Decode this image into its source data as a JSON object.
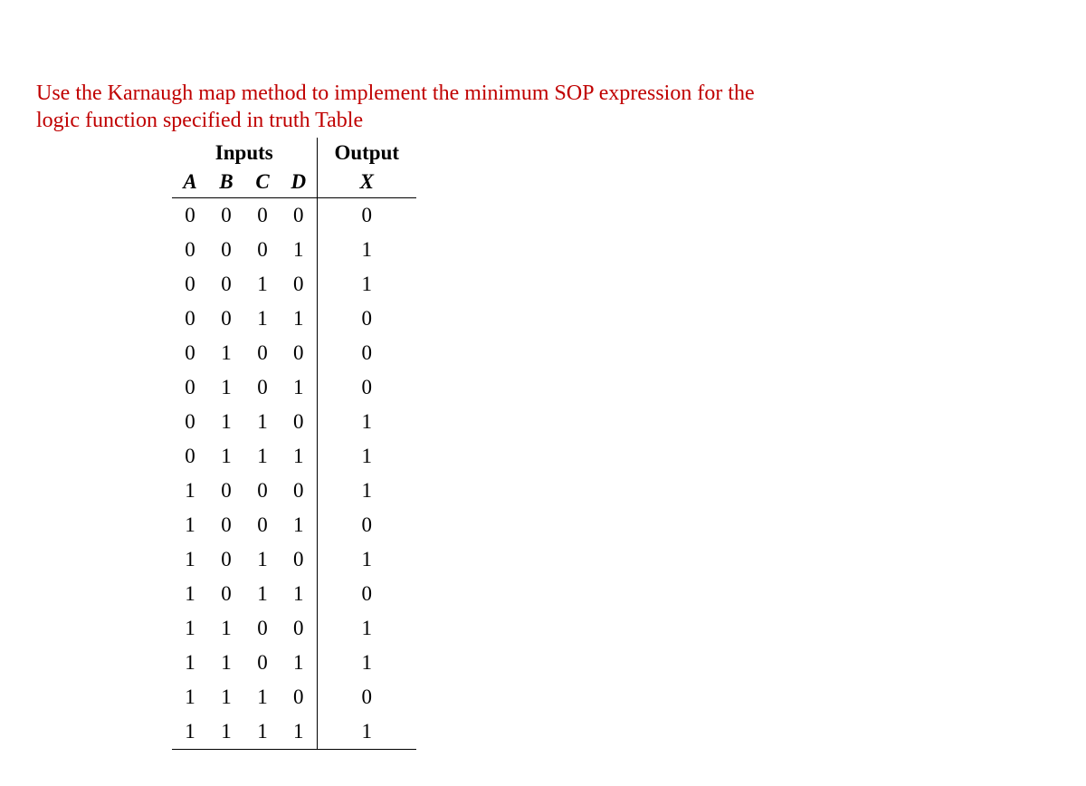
{
  "prompt_line1": "Use the Karnaugh map method to implement the minimum SOP expression for the",
  "prompt_line2": "logic function specified in truth Table",
  "table": {
    "header_inputs": "Inputs",
    "header_output": "Output",
    "col_A": "A",
    "col_B": "B",
    "col_C": "C",
    "col_D": "D",
    "col_X": "X",
    "rows": [
      {
        "A": "0",
        "B": "0",
        "C": "0",
        "D": "0",
        "X": "0"
      },
      {
        "A": "0",
        "B": "0",
        "C": "0",
        "D": "1",
        "X": "1"
      },
      {
        "A": "0",
        "B": "0",
        "C": "1",
        "D": "0",
        "X": "1"
      },
      {
        "A": "0",
        "B": "0",
        "C": "1",
        "D": "1",
        "X": "0"
      },
      {
        "A": "0",
        "B": "1",
        "C": "0",
        "D": "0",
        "X": "0"
      },
      {
        "A": "0",
        "B": "1",
        "C": "0",
        "D": "1",
        "X": "0"
      },
      {
        "A": "0",
        "B": "1",
        "C": "1",
        "D": "0",
        "X": "1"
      },
      {
        "A": "0",
        "B": "1",
        "C": "1",
        "D": "1",
        "X": "1"
      },
      {
        "A": "1",
        "B": "0",
        "C": "0",
        "D": "0",
        "X": "1"
      },
      {
        "A": "1",
        "B": "0",
        "C": "0",
        "D": "1",
        "X": "0"
      },
      {
        "A": "1",
        "B": "0",
        "C": "1",
        "D": "0",
        "X": "1"
      },
      {
        "A": "1",
        "B": "0",
        "C": "1",
        "D": "1",
        "X": "0"
      },
      {
        "A": "1",
        "B": "1",
        "C": "0",
        "D": "0",
        "X": "1"
      },
      {
        "A": "1",
        "B": "1",
        "C": "0",
        "D": "1",
        "X": "1"
      },
      {
        "A": "1",
        "B": "1",
        "C": "1",
        "D": "0",
        "X": "0"
      },
      {
        "A": "1",
        "B": "1",
        "C": "1",
        "D": "1",
        "X": "1"
      }
    ]
  }
}
